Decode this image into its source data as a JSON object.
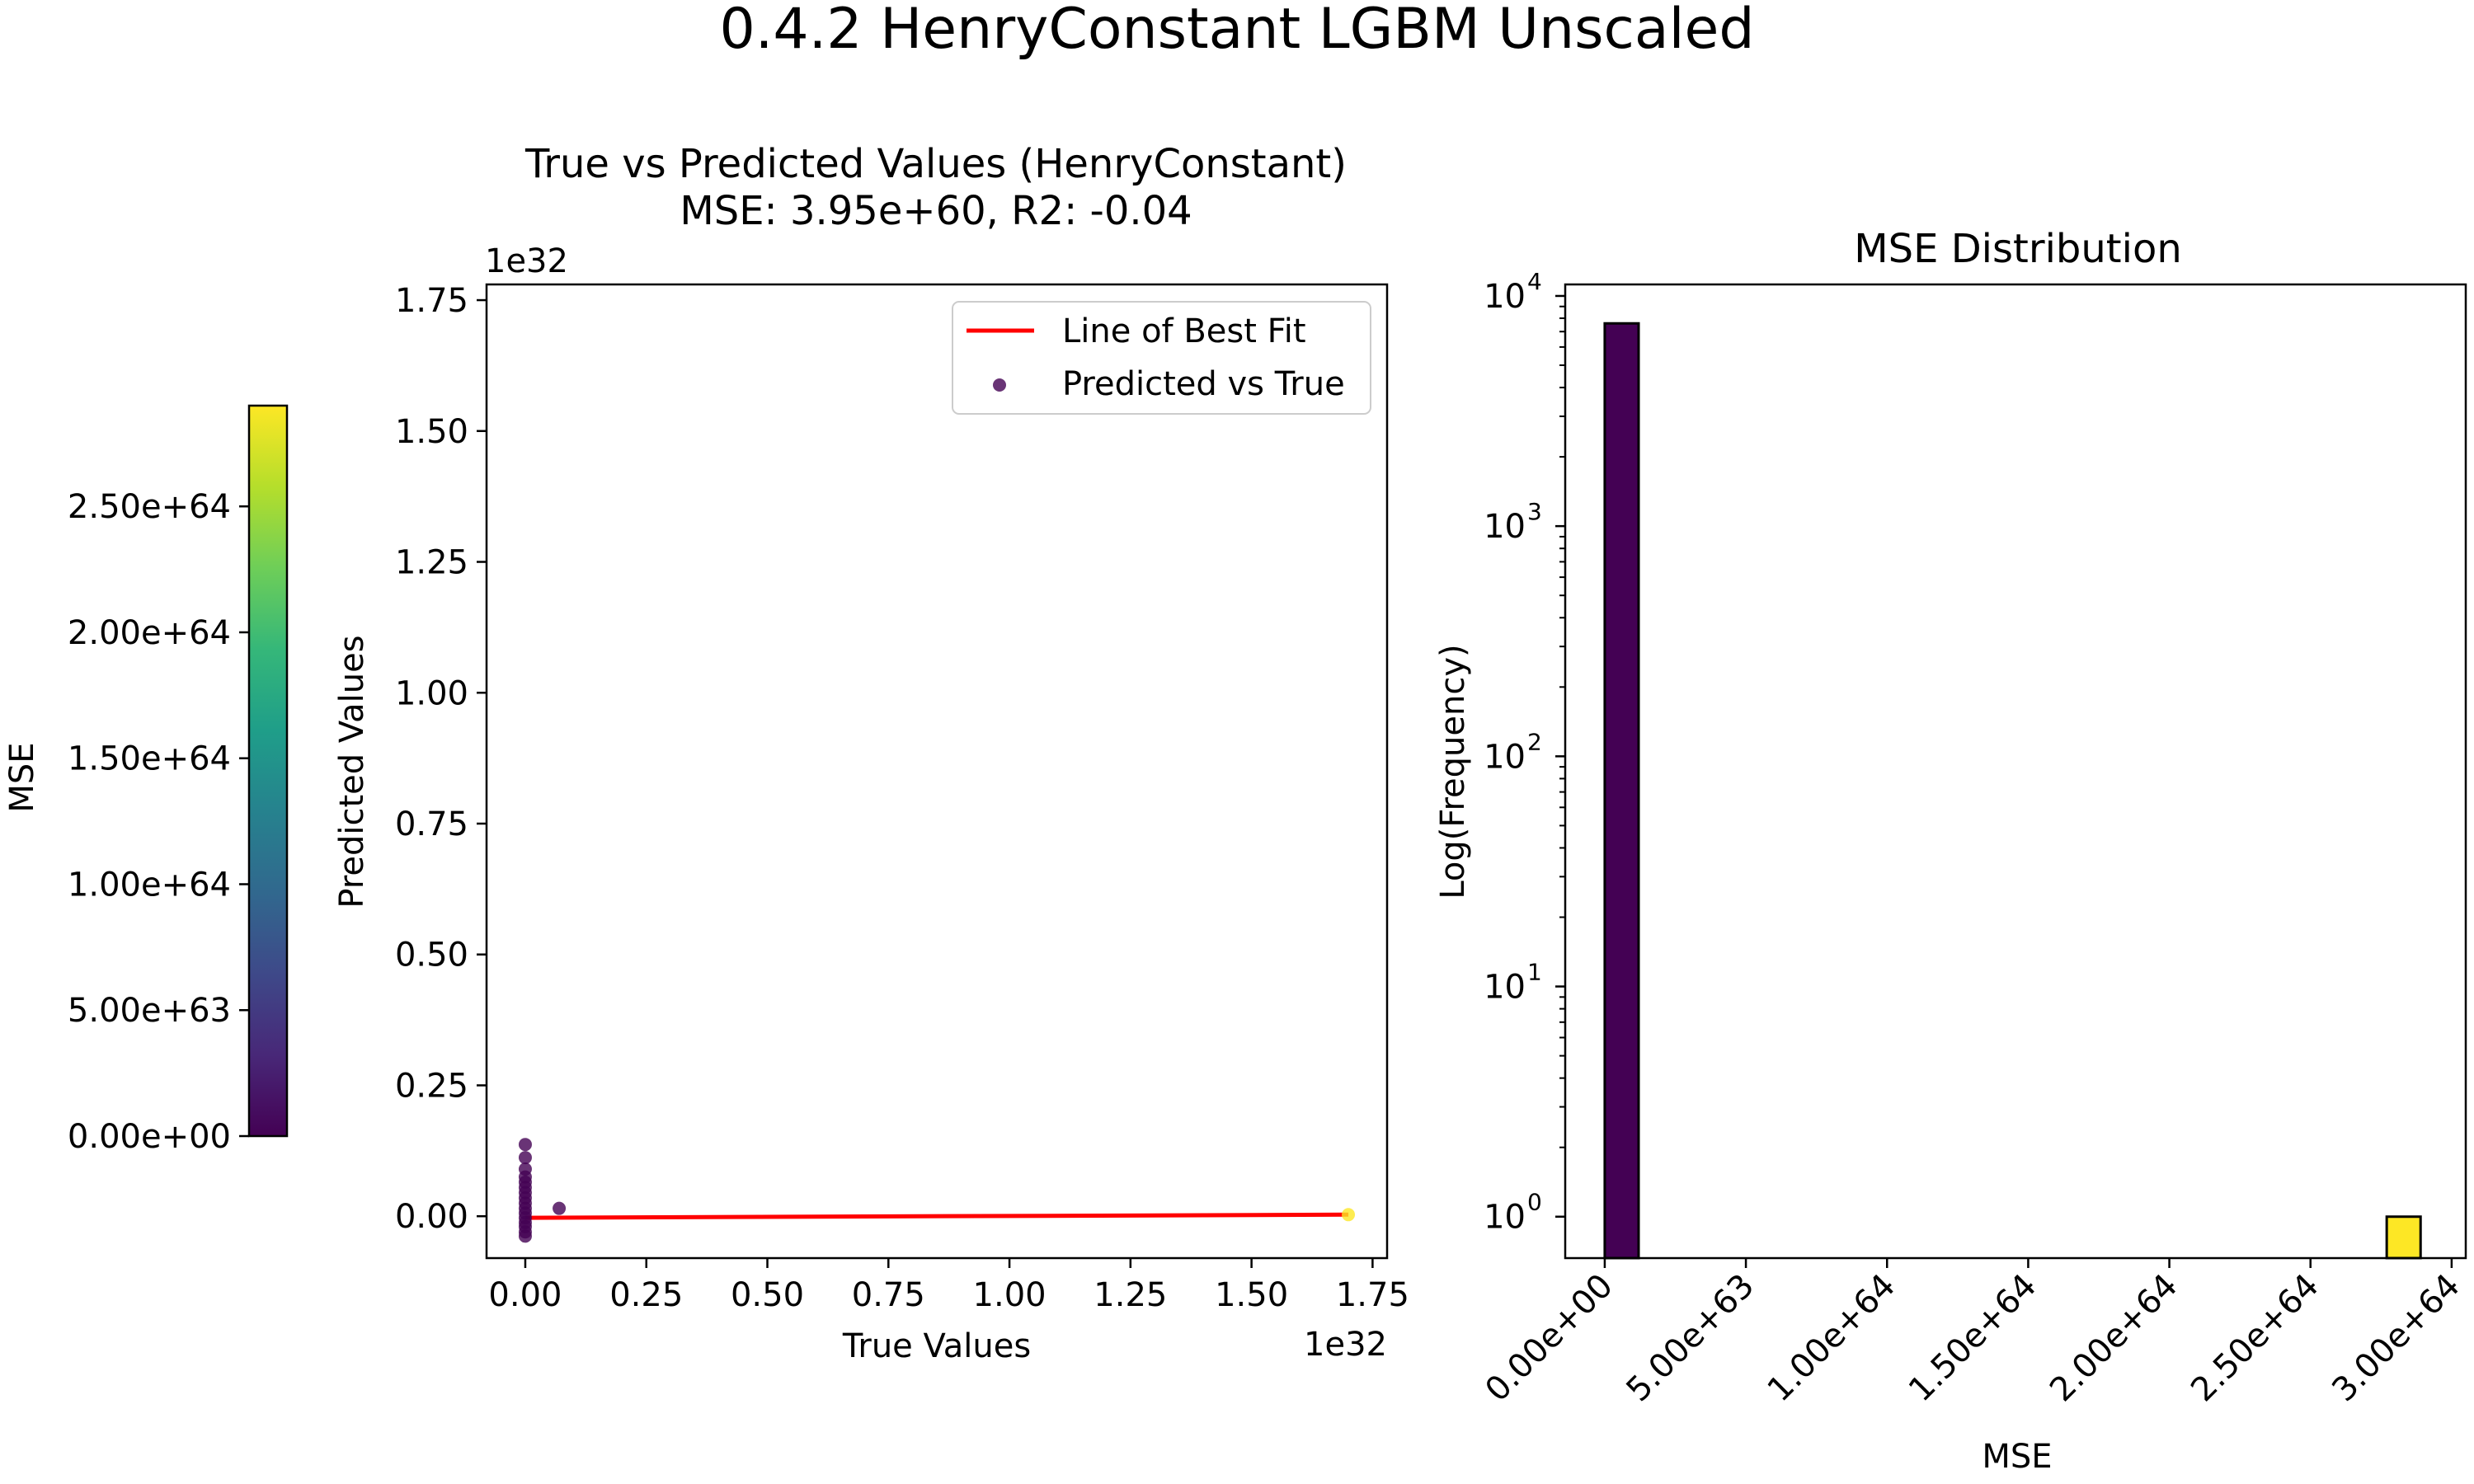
{
  "figure": {
    "suptitle": "0.4.2 HenryConstant LGBM Unscaled"
  },
  "colors": {
    "fit_line": "#ff0000",
    "low_mse": "#440154",
    "high_mse": "#fde725",
    "viridis_stops": [
      "#440154",
      "#482878",
      "#3e4989",
      "#31688e",
      "#26828e",
      "#1f9e89",
      "#35b779",
      "#6ece58",
      "#b5de2b",
      "#fde725"
    ]
  },
  "chart_data": [
    {
      "type": "scatter",
      "title": "True vs Predicted Values (HenryConstant)",
      "subtitle": "MSE: 3.95e+60, R2: -0.04",
      "xlabel": "True Values",
      "ylabel": "Predicted Values",
      "x_offset_text": "1e32",
      "y_offset_text": "1e32",
      "xlim": [
        -0.08,
        1.78
      ],
      "ylim": [
        -0.08,
        1.78
      ],
      "xticks": [
        0,
        0.25,
        0.5,
        0.75,
        1.0,
        1.25,
        1.5,
        1.75
      ],
      "xtick_labels": [
        "0.00",
        "0.25",
        "0.50",
        "0.75",
        "1.00",
        "1.25",
        "1.50",
        "1.75"
      ],
      "yticks": [
        0,
        0.25,
        0.5,
        0.75,
        1.0,
        1.25,
        1.5,
        1.75
      ],
      "ytick_labels": [
        "0.00",
        "0.25",
        "0.50",
        "0.75",
        "1.00",
        "1.25",
        "1.50",
        "1.75"
      ],
      "legend": {
        "position": "upper right",
        "entries": [
          "Line of Best Fit",
          "Predicted vs True"
        ]
      },
      "fit_line": {
        "x": [
          0,
          1.7
        ],
        "y": [
          -0.003,
          0.003
        ]
      },
      "points": [
        {
          "x": 0.0,
          "y": 0.137,
          "mse": 0
        },
        {
          "x": 0.0,
          "y": 0.112,
          "mse": 0
        },
        {
          "x": 0.0,
          "y": 0.09,
          "mse": 0
        },
        {
          "x": 0.0,
          "y": 0.075,
          "mse": 0
        },
        {
          "x": 0.0,
          "y": 0.065,
          "mse": 0
        },
        {
          "x": 0.0,
          "y": 0.055,
          "mse": 0
        },
        {
          "x": 0.0,
          "y": 0.045,
          "mse": 0
        },
        {
          "x": 0.0,
          "y": 0.035,
          "mse": 0
        },
        {
          "x": 0.0,
          "y": 0.025,
          "mse": 0
        },
        {
          "x": 0.0,
          "y": 0.015,
          "mse": 0
        },
        {
          "x": 0.0,
          "y": 0.006,
          "mse": 0
        },
        {
          "x": 0.0,
          "y": -0.003,
          "mse": 0
        },
        {
          "x": 0.0,
          "y": -0.012,
          "mse": 0
        },
        {
          "x": 0.0,
          "y": -0.02,
          "mse": 0
        },
        {
          "x": 0.0,
          "y": -0.03,
          "mse": 0
        },
        {
          "x": 0.0,
          "y": -0.038,
          "mse": 0
        },
        {
          "x": 0.07,
          "y": 0.015,
          "mse": 0
        },
        {
          "x": 1.7,
          "y": 0.003,
          "mse": 2.9e+64
        }
      ],
      "colorbar": {
        "label": "MSE",
        "min": 0,
        "max": 2.9e+64,
        "ticks": [
          "0.00e+00",
          "5.00e+63",
          "1.00e+64",
          "1.50e+64",
          "2.00e+64",
          "2.50e+64"
        ],
        "tick_values": [
          0,
          5e+63,
          1e+64,
          1.5e+64,
          2e+64,
          2.5e+64
        ]
      }
    },
    {
      "type": "bar",
      "title": "MSE Distribution",
      "xlabel": "MSE",
      "ylabel": "Log(Frequency)",
      "yscale": "log",
      "xlim": [
        -1.4e+63,
        3.05e+64
      ],
      "ylim_log10": [
        -0.18,
        4.05
      ],
      "xticks": [
        0,
        5e+63,
        1e+64,
        1.5e+64,
        2e+64,
        2.5e+64,
        3e+64
      ],
      "xtick_labels": [
        "0.00e+00",
        "5.00e+63",
        "1.00e+64",
        "1.50e+64",
        "2.00e+64",
        "2.50e+64",
        "3.00e+64"
      ],
      "yticks": [
        1,
        10,
        100,
        1000,
        10000
      ],
      "ytick_labels": [
        "10",
        "10",
        "10",
        "10",
        "10"
      ],
      "ytick_exponents": [
        "0",
        "1",
        "2",
        "3",
        "4"
      ],
      "bins": [
        {
          "x0": 0,
          "x1": 1.2e+63,
          "count": 7600,
          "color": "#440154"
        },
        {
          "x0": 2.77e+64,
          "x1": 2.89e+64,
          "count": 1,
          "color": "#fde725"
        }
      ]
    }
  ]
}
